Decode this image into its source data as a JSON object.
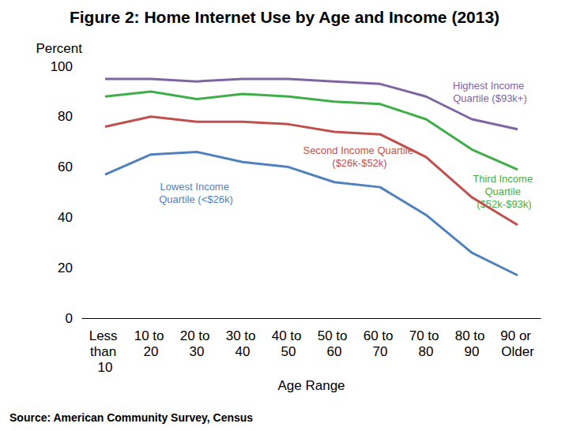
{
  "chart_data": {
    "type": "line",
    "title": "Figure 2: Home Internet Use by Age and Income (2013)",
    "y_label": "Percent",
    "x_label": "Age Range",
    "source": "Source: American Community Survey, Census",
    "categories": [
      "Less than 10",
      "10 to 20",
      "20 to 30",
      "30 to 40",
      "40 to 50",
      "50 to 60",
      "60 to 70",
      "70 to 80",
      "80 to 90",
      "90 or Older"
    ],
    "series": [
      {
        "name": "Highest Income Quartile ($93k+)",
        "color": "#8064a2",
        "values": [
          95,
          95,
          94,
          95,
          95,
          94,
          93,
          88,
          79,
          75
        ]
      },
      {
        "name": "Third Income Quartile ($52k-$93k)",
        "color": "#3fae49",
        "values": [
          88,
          90,
          87,
          89,
          88,
          86,
          85,
          79,
          67,
          59
        ]
      },
      {
        "name": "Second Income Quartile ($26k-$52k)",
        "color": "#c0504d",
        "values": [
          76,
          80,
          78,
          78,
          77,
          74,
          73,
          64,
          48,
          37
        ]
      },
      {
        "name": "Lowest Income Quartile (<$26k)",
        "color": "#4f81bd",
        "values": [
          57,
          65,
          66,
          62,
          60,
          54,
          52,
          41,
          26,
          17
        ]
      }
    ],
    "ylim": [
      0,
      100
    ],
    "yticks": [
      0,
      20,
      40,
      60,
      80,
      100
    ],
    "grid": false,
    "marker": "none",
    "line_style": "solid"
  }
}
